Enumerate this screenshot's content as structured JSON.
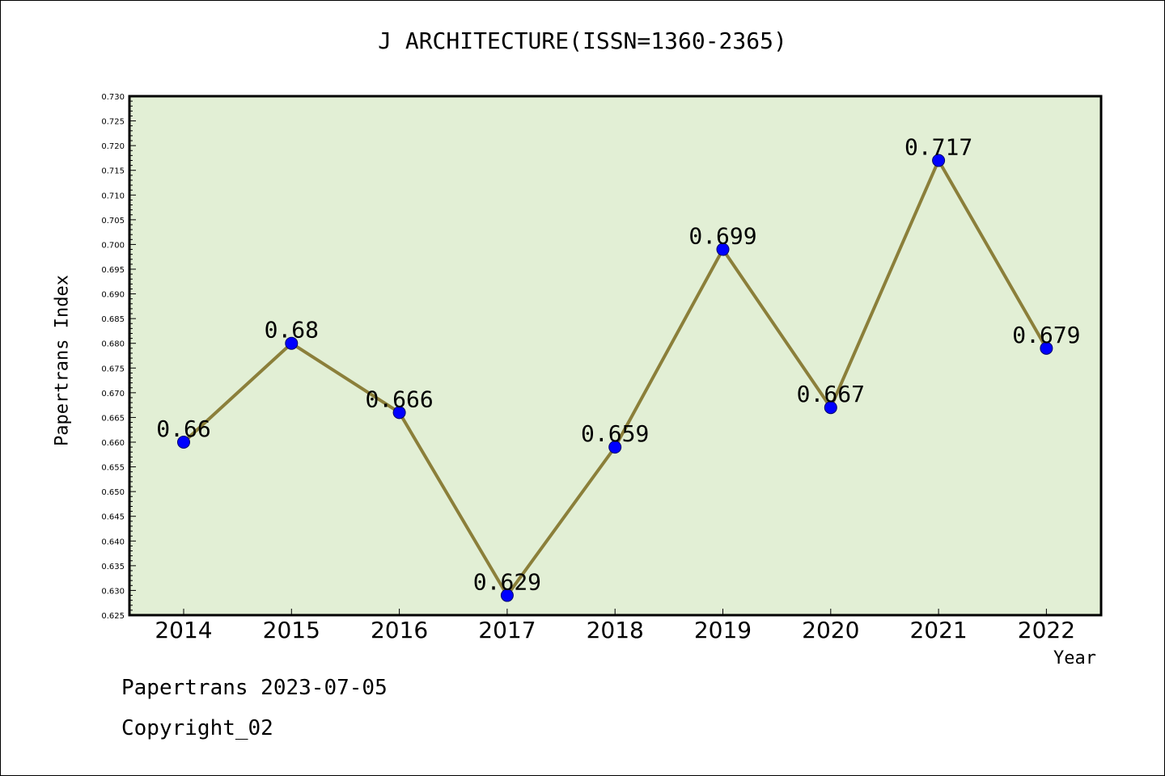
{
  "colors": {
    "plot_bg": "#e2efd5",
    "line": "#8b7f3a",
    "marker": "#0000ff",
    "axis": "#000000"
  },
  "footer": {
    "line1": "Papertrans 2023-07-05",
    "line2": "Copyright_02"
  },
  "chart_data": {
    "type": "line",
    "title": "J ARCHITECTURE(ISSN=1360-2365)",
    "xlabel": "Year",
    "ylabel": "Papertrans Index",
    "categories": [
      "2014",
      "2015",
      "2016",
      "2017",
      "2018",
      "2019",
      "2020",
      "2021",
      "2022"
    ],
    "values": [
      0.66,
      0.68,
      0.666,
      0.629,
      0.659,
      0.699,
      0.667,
      0.717,
      0.679
    ],
    "data_labels": [
      "0.66",
      "0.68",
      "0.666",
      "0.629",
      "0.659",
      "0.699",
      "0.667",
      "0.717",
      "0.679"
    ],
    "ylim": [
      0.625,
      0.73
    ],
    "ytick_step": 0.005,
    "grid": false,
    "legend": "none"
  }
}
